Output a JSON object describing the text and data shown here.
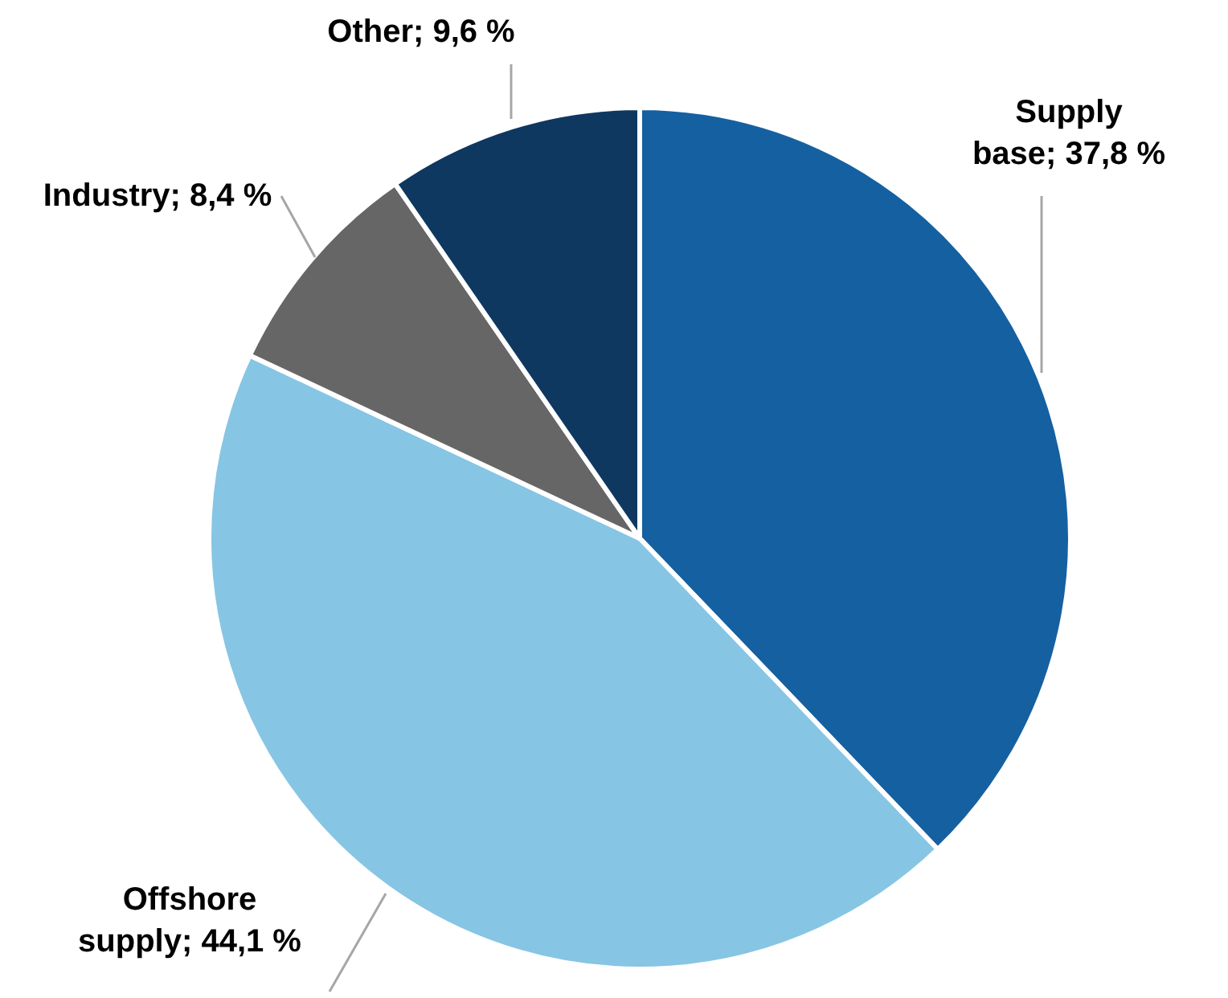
{
  "chart_data": {
    "type": "pie",
    "categories": [
      "Supply base",
      "Offshore supply",
      "Industry",
      "Other"
    ],
    "values": [
      37.8,
      44.1,
      8.4,
      9.6
    ],
    "value_labels": [
      "37,8 %",
      "44,1 %",
      "8,4 %",
      "9,6 %"
    ],
    "colors": [
      "#1560a0",
      "#87c5e4",
      "#666666",
      "#0e3860"
    ]
  }
}
